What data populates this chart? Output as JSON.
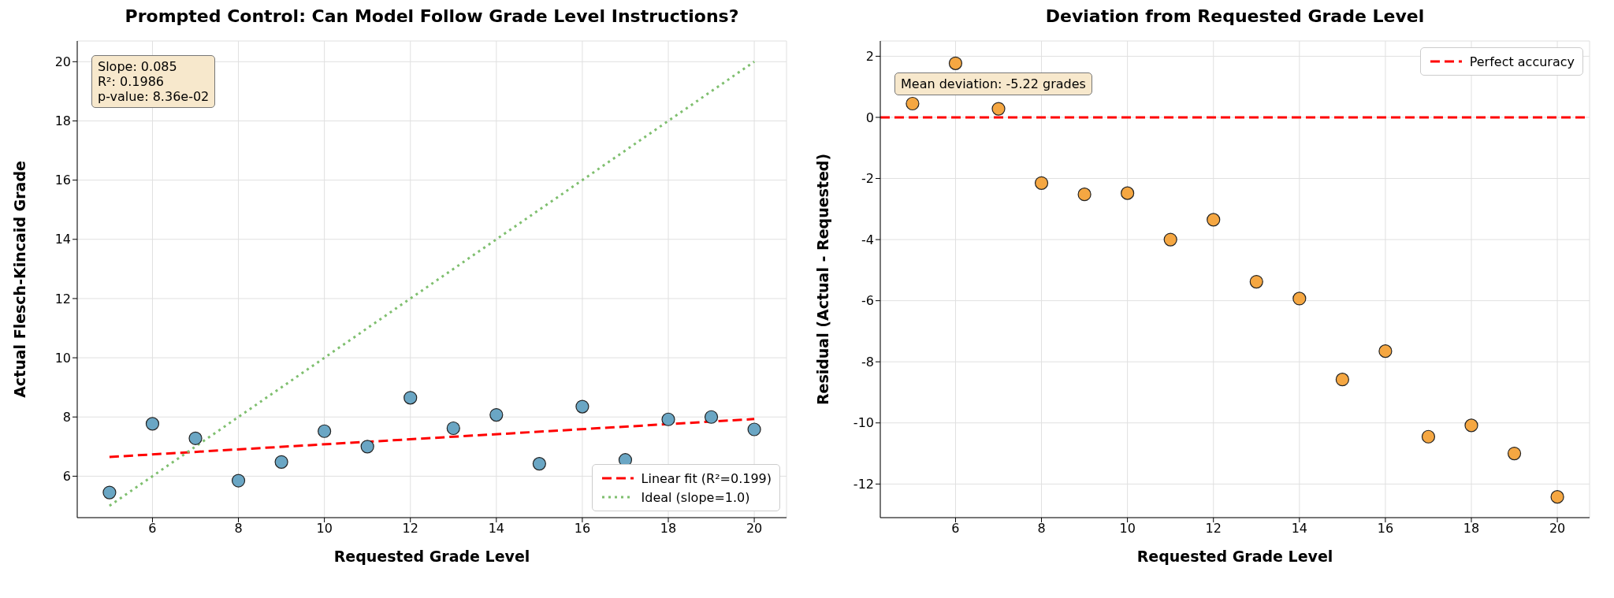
{
  "chart_data": [
    {
      "type": "scatter",
      "title": "Prompted Control: Can Model Follow Grade Level Instructions?",
      "xlabel": "Requested Grade Level",
      "ylabel": "Actual Flesch-Kincaid Grade",
      "xlim": [
        4.25,
        20.75
      ],
      "xticks": [
        6,
        8,
        10,
        12,
        14,
        16,
        18,
        20
      ],
      "ylim": [
        4.6,
        20.7
      ],
      "yticks": [
        6,
        8,
        10,
        12,
        14,
        16,
        18,
        20
      ],
      "grid": true,
      "marker": "circle",
      "legend": "bottom right",
      "annotations": [
        "Slope: 0.085\nR²: 0.1986\np-value: 8.36e-02"
      ],
      "series": [
        {
          "color": "#6aa6c4",
          "x": [
            5,
            6,
            7,
            8,
            9,
            10,
            11,
            12,
            13,
            14,
            15,
            16,
            17,
            18,
            19,
            20
          ],
          "values": [
            5.45,
            7.77,
            7.28,
            5.85,
            6.48,
            7.52,
            7.0,
            8.65,
            7.62,
            8.07,
            6.42,
            8.35,
            6.55,
            7.92,
            8.0,
            7.58
          ]
        },
        {
          "type": "line",
          "name": "Linear fit (R²=0.199)",
          "color": "#ff0000",
          "line_style": "dashed",
          "marker": "none",
          "x": [
            5,
            20
          ],
          "values": [
            6.65,
            7.93
          ]
        },
        {
          "type": "line",
          "name": "Ideal (slope=1.0)",
          "color": "#7fbf6f",
          "line_style": "dotted",
          "marker": "none",
          "x": [
            5,
            20
          ],
          "values": [
            5,
            20
          ]
        }
      ]
    },
    {
      "type": "scatter",
      "title": "Deviation from Requested Grade Level",
      "xlabel": "Requested Grade Level",
      "ylabel": "Residual (Actual - Requested)",
      "xlim": [
        4.25,
        20.75
      ],
      "xticks": [
        6,
        8,
        10,
        12,
        14,
        16,
        18,
        20
      ],
      "ylim": [
        -13.1,
        2.5
      ],
      "yticks": [
        -12,
        -10,
        -8,
        -6,
        -4,
        -2,
        0,
        2
      ],
      "grid": true,
      "marker": "circle",
      "legend": "top right",
      "annotations": [
        "Mean deviation: -5.22 grades"
      ],
      "ref_lines": [
        {
          "axis": "y",
          "value": 0,
          "label": "Perfect accuracy",
          "color": "#ff0000",
          "line_style": "dashed"
        }
      ],
      "series": [
        {
          "color": "#f5a742",
          "x": [
            5,
            6,
            7,
            8,
            9,
            10,
            11,
            12,
            13,
            14,
            15,
            16,
            17,
            18,
            19,
            20
          ],
          "values": [
            0.45,
            1.77,
            0.28,
            -2.15,
            -2.52,
            -2.48,
            -4.0,
            -3.35,
            -5.38,
            -5.93,
            -8.58,
            -7.65,
            -10.45,
            -10.08,
            -11.0,
            -12.42
          ]
        }
      ]
    }
  ]
}
